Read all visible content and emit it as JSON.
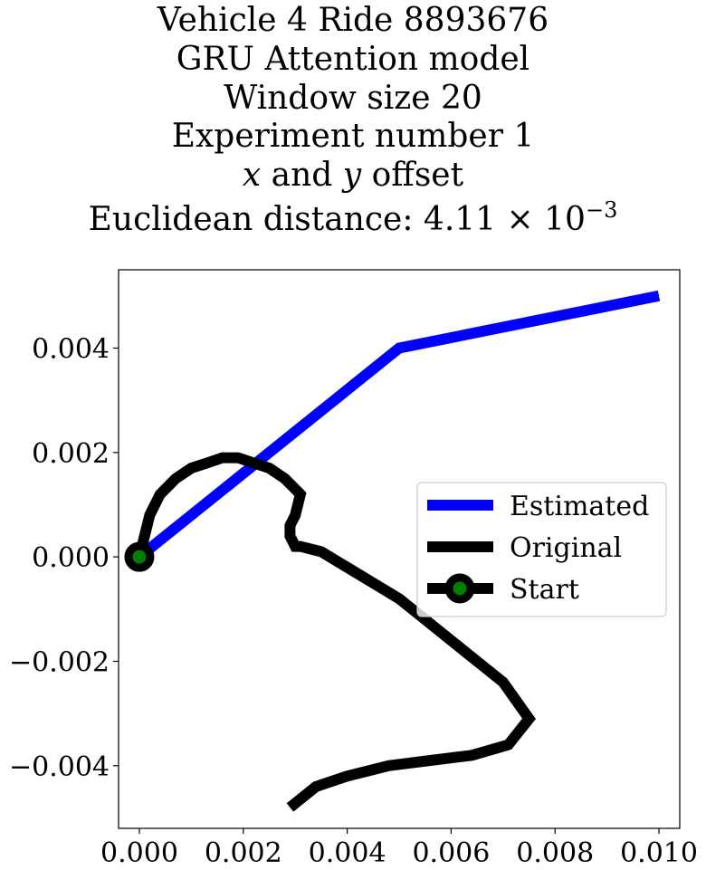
{
  "title": {
    "line1": "Vehicle 4 Ride 8893676",
    "line2": "GRU Attention model",
    "line3": "Window size 20",
    "line4": "Experiment number 1",
    "line5_x": "x",
    "line5_and": " and ",
    "line5_y": "y",
    "line5_rest": " offset",
    "line6_prefix": "Euclidean distance: 4.11 × 10",
    "line6_exp": "−3"
  },
  "chart_data": {
    "type": "line",
    "xlim": [
      -0.0004,
      0.0104
    ],
    "ylim": [
      -0.0052,
      0.0055
    ],
    "xticks": [
      0.0,
      0.002,
      0.004,
      0.006,
      0.008,
      0.01
    ],
    "xtick_labels": [
      "0.000",
      "0.002",
      "0.004",
      "0.006",
      "0.008",
      "0.010"
    ],
    "yticks": [
      -0.004,
      -0.002,
      0.0,
      0.002,
      0.004
    ],
    "ytick_labels": [
      "−0.004",
      "−0.002",
      "0.000",
      "0.002",
      "0.004"
    ],
    "grid": false,
    "legend_position": "center-right",
    "series": [
      {
        "name": "Estimated",
        "color": "#0000ff",
        "x": [
          0.0,
          0.005,
          0.01
        ],
        "y": [
          0.0,
          0.004,
          0.005
        ]
      },
      {
        "name": "Original",
        "color": "#000000",
        "x": [
          0.0,
          0.0001,
          0.0002,
          0.0004,
          0.0007,
          0.001,
          0.0013,
          0.0016,
          0.0019,
          0.0022,
          0.0025,
          0.0028,
          0.003,
          0.0031,
          0.003,
          0.0029,
          0.0029,
          0.003,
          0.0031,
          0.0035,
          0.004,
          0.0045,
          0.005,
          0.0055,
          0.006,
          0.0065,
          0.007,
          0.0075,
          0.0071,
          0.0064,
          0.0056,
          0.0048,
          0.004,
          0.0034,
          0.0029
        ],
        "y": [
          0.0,
          0.0004,
          0.0008,
          0.0012,
          0.0015,
          0.0017,
          0.0018,
          0.0019,
          0.0019,
          0.0018,
          0.0017,
          0.0015,
          0.0013,
          0.0012,
          0.0008,
          0.0006,
          0.0004,
          0.0002,
          0.0002,
          0.0001,
          -0.0002,
          -0.0005,
          -0.0008,
          -0.0012,
          -0.0016,
          -0.002,
          -0.0024,
          -0.0031,
          -0.0036,
          -0.0038,
          -0.0039,
          -0.004,
          -0.0042,
          -0.0044,
          -0.0048
        ]
      }
    ],
    "start": {
      "name": "Start",
      "x": 0.0,
      "y": 0.0,
      "color": "#008000",
      "edge_color": "#000000"
    }
  }
}
